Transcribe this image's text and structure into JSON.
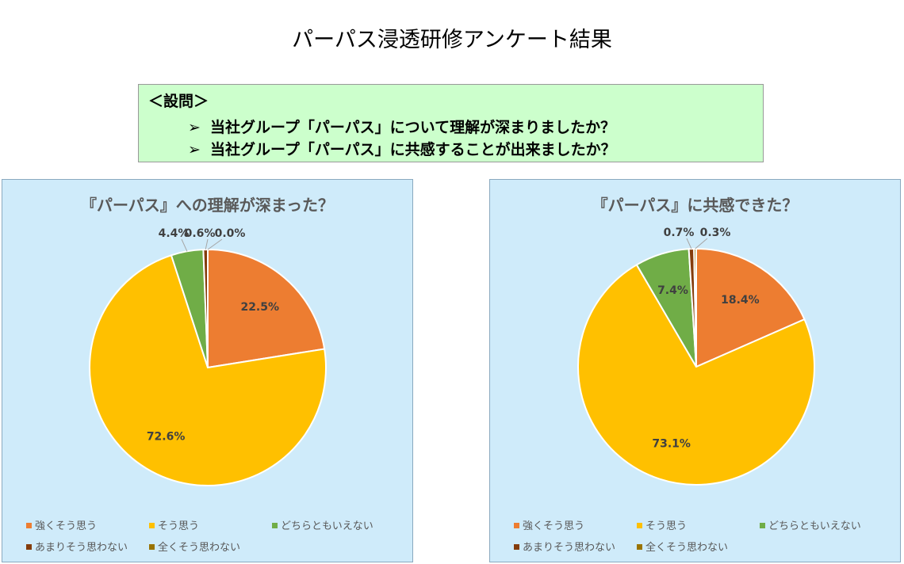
{
  "page": {
    "title": "パーパス浸透研修アンケート結果"
  },
  "question_box": {
    "header": "＜設問＞",
    "arrow": "➢",
    "questions": [
      "当社グループ「パーパス」について理解が深まりましたか？",
      "当社グループ「パーパス」に共感することが出来ましたか？"
    ]
  },
  "colors": {
    "strongly_agree": "#ed7d31",
    "agree": "#ffc000",
    "neutral": "#70ad47",
    "disagree": "#843c0c",
    "strongly_disagree": "#997300",
    "panel_bg": "#cfebfa"
  },
  "chart_data": [
    {
      "type": "pie",
      "title": "『パーパス』への理解が深まった？",
      "categories": [
        "強くそう思う",
        "そう思う",
        "どちらともいえない",
        "あまりそう思わない",
        "全くそう思わない"
      ],
      "values": [
        22.5,
        72.6,
        4.4,
        0.6,
        0.0
      ],
      "labels": [
        "22.5%",
        "72.6%",
        "4.4%",
        "0.6%",
        "0.0%"
      ],
      "legend_position": "bottom"
    },
    {
      "type": "pie",
      "title": "『パーパス』に共感できた？",
      "categories": [
        "強くそう思う",
        "そう思う",
        "どちらともいえない",
        "あまりそう思わない",
        "全くそう思わない"
      ],
      "values": [
        18.4,
        73.1,
        7.4,
        0.7,
        0.3
      ],
      "labels": [
        "18.4%",
        "73.1%",
        "7.4%",
        "0.7%",
        "0.3%"
      ],
      "legend_position": "bottom"
    }
  ]
}
